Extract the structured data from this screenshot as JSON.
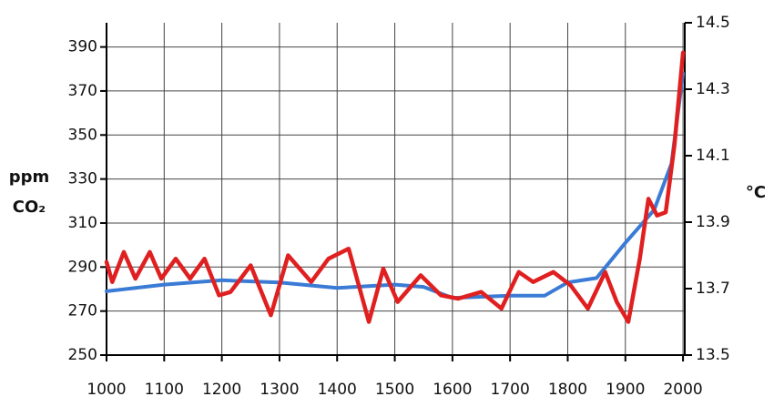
{
  "chart_data": {
    "type": "line",
    "y_label_lines": [
      "ppm",
      "CO₂"
    ],
    "y2_label": "°C",
    "x": [],
    "xlim": [
      1000,
      2003
    ],
    "xticks": [
      1000,
      1100,
      1200,
      1300,
      1400,
      1500,
      1600,
      1700,
      1800,
      1900,
      2000
    ],
    "ylim": [
      250,
      401
    ],
    "yticks": [
      250,
      270,
      290,
      310,
      330,
      350,
      370,
      390
    ],
    "y2lim": [
      13.5,
      14.5
    ],
    "y2ticks": [
      13.5,
      13.7,
      13.9,
      14.1,
      14.3,
      14.5
    ],
    "grid": true,
    "series": [
      {
        "color": "#3a7bd5",
        "axis": "y",
        "x": [
          1000,
          1100,
          1200,
          1300,
          1400,
          1500,
          1550,
          1600,
          1700,
          1760,
          1800,
          1850,
          1900,
          1950,
          1980,
          2000
        ],
        "values": [
          279,
          282,
          284,
          283,
          280.5,
          282,
          281,
          276,
          277,
          277,
          283,
          285,
          301,
          316,
          337,
          378
        ]
      },
      {
        "color": "#e02020",
        "axis": "y2",
        "x": [
          1000,
          1010,
          1030,
          1050,
          1075,
          1095,
          1120,
          1145,
          1170,
          1195,
          1215,
          1250,
          1285,
          1315,
          1355,
          1385,
          1420,
          1455,
          1480,
          1505,
          1545,
          1580,
          1610,
          1650,
          1685,
          1715,
          1740,
          1775,
          1805,
          1835,
          1865,
          1885,
          1905,
          1925,
          1940,
          1955,
          1970,
          1985,
          2000
        ],
        "values": [
          13.78,
          13.72,
          13.81,
          13.73,
          13.81,
          13.73,
          13.79,
          13.73,
          13.79,
          13.68,
          13.69,
          13.77,
          13.62,
          13.8,
          13.72,
          13.79,
          13.82,
          13.6,
          13.76,
          13.66,
          13.74,
          13.68,
          13.67,
          13.69,
          13.64,
          13.75,
          13.72,
          13.75,
          13.71,
          13.64,
          13.75,
          13.66,
          13.6,
          13.79,
          13.97,
          13.92,
          13.93,
          14.13,
          14.41
        ]
      }
    ]
  }
}
